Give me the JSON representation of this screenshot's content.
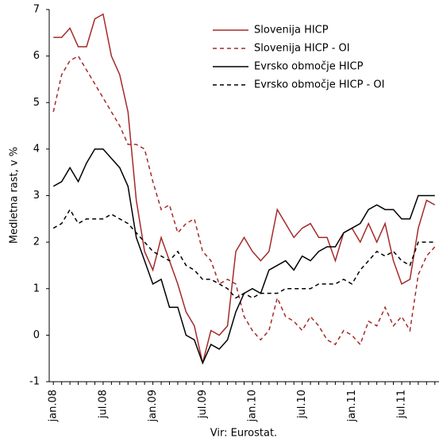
{
  "chart_data": {
    "type": "line",
    "y_axis_label": "Medletna rast, v %",
    "source": "Vir: Eurostat.",
    "categories": [
      "jan.08",
      null,
      null,
      null,
      null,
      null,
      "jul.08",
      null,
      null,
      null,
      null,
      null,
      "jan.09",
      null,
      null,
      null,
      null,
      null,
      "jul.09",
      null,
      null,
      null,
      null,
      null,
      "jan.10",
      null,
      null,
      null,
      null,
      null,
      "jul.10",
      null,
      null,
      null,
      null,
      null,
      "jan.11",
      null,
      null,
      null,
      null,
      null,
      "jul.11",
      null,
      null,
      null,
      null
    ],
    "series": [
      {
        "name": "Slovenija HICP",
        "color": "#a52a2a",
        "line_style": "solid",
        "values": [
          6.4,
          6.4,
          6.6,
          6.2,
          6.2,
          6.8,
          6.9,
          6.0,
          5.6,
          4.8,
          2.9,
          1.8,
          1.4,
          2.1,
          1.6,
          1.1,
          0.5,
          0.2,
          -0.6,
          0.1,
          0.0,
          0.2,
          1.8,
          2.1,
          1.8,
          1.6,
          1.8,
          2.7,
          2.4,
          2.1,
          2.3,
          2.4,
          2.1,
          2.1,
          1.6,
          2.2,
          2.3,
          2.0,
          2.4,
          2.0,
          2.4,
          1.6,
          1.1,
          1.2,
          2.3,
          2.9,
          2.8
        ]
      },
      {
        "name": "Slovenija HICP - OI",
        "color": "#a52a2a",
        "line_style": "dashed",
        "values": [
          4.8,
          5.6,
          5.9,
          6.0,
          5.7,
          5.4,
          5.1,
          4.8,
          4.5,
          4.1,
          4.1,
          4.0,
          3.3,
          2.7,
          2.8,
          2.2,
          2.4,
          2.5,
          1.8,
          1.6,
          1.1,
          1.2,
          1.1,
          0.4,
          0.1,
          -0.1,
          0.1,
          0.8,
          0.4,
          0.3,
          0.1,
          0.4,
          0.2,
          -0.1,
          -0.2,
          0.1,
          0.0,
          -0.2,
          0.3,
          0.2,
          0.6,
          0.2,
          0.4,
          0.1,
          1.3,
          1.7,
          1.9
        ]
      },
      {
        "name": "Evrsko območje HICP",
        "color": "#000000",
        "line_style": "solid",
        "values": [
          3.2,
          3.3,
          3.6,
          3.3,
          3.7,
          4.0,
          4.0,
          3.8,
          3.6,
          3.2,
          2.1,
          1.6,
          1.1,
          1.2,
          0.6,
          0.6,
          0.0,
          -0.1,
          -0.6,
          -0.2,
          -0.3,
          -0.1,
          0.5,
          0.9,
          1.0,
          0.9,
          1.4,
          1.5,
          1.6,
          1.4,
          1.7,
          1.6,
          1.8,
          1.9,
          1.9,
          2.2,
          2.3,
          2.4,
          2.7,
          2.8,
          2.7,
          2.7,
          2.5,
          2.5,
          3.0,
          3.0,
          3.0
        ]
      },
      {
        "name": "Evrsko območje HICP - OI",
        "color": "#000000",
        "line_style": "dashed",
        "values": [
          2.3,
          2.4,
          2.7,
          2.4,
          2.5,
          2.5,
          2.5,
          2.6,
          2.5,
          2.4,
          2.2,
          2.0,
          1.8,
          1.7,
          1.6,
          1.8,
          1.5,
          1.4,
          1.2,
          1.2,
          1.1,
          1.0,
          0.8,
          0.9,
          0.8,
          0.9,
          0.9,
          0.9,
          1.0,
          1.0,
          1.0,
          1.0,
          1.1,
          1.1,
          1.1,
          1.2,
          1.1,
          1.4,
          1.6,
          1.8,
          1.7,
          1.8,
          1.6,
          1.5,
          2.0,
          2.0,
          2.0
        ]
      }
    ],
    "ylim": [
      -1,
      7
    ],
    "yticks": [
      -1,
      0,
      1,
      2,
      3,
      4,
      5,
      6,
      7
    ],
    "grid": false,
    "legend": "upper right"
  }
}
